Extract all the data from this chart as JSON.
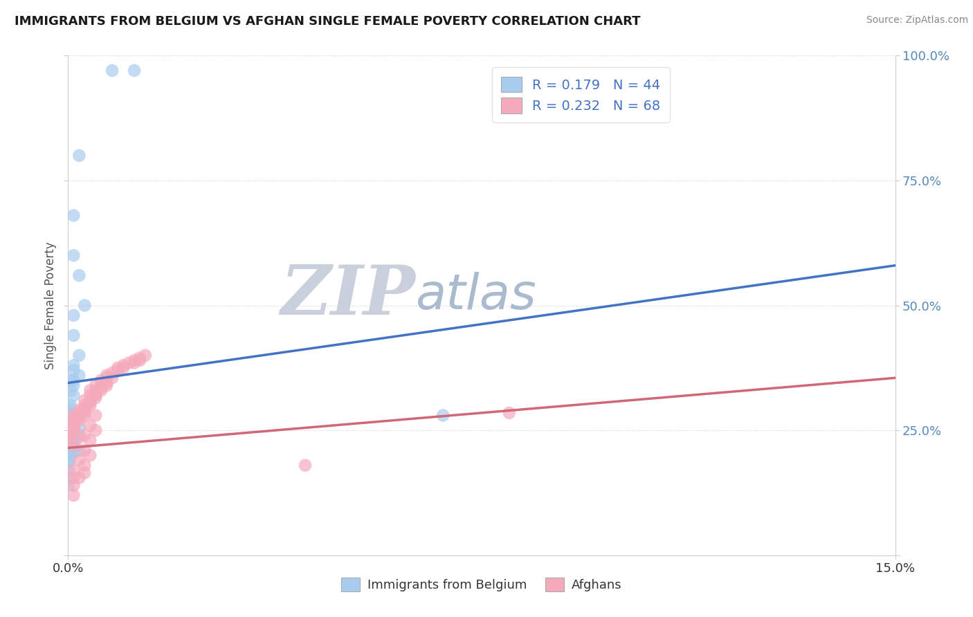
{
  "title": "IMMIGRANTS FROM BELGIUM VS AFGHAN SINGLE FEMALE POVERTY CORRELATION CHART",
  "source": "Source: ZipAtlas.com",
  "ylabel": "Single Female Poverty",
  "xlim": [
    0.0,
    0.15
  ],
  "ylim": [
    0.0,
    1.0
  ],
  "series1_color": "#A8CCEE",
  "series2_color": "#F5AABC",
  "trendline1_color": "#4472C4",
  "trendline2_color": "#D06878",
  "watermark_zip": "ZIP",
  "watermark_atlas": "atlas",
  "watermark_color_zip": "#CACFDC",
  "watermark_color_atlas": "#AABBD0",
  "legend_label1": "Immigrants from Belgium",
  "legend_label2": "Afghans",
  "legend_R1": "R = 0.179",
  "legend_N1": "N = 44",
  "legend_R2": "R = 0.232",
  "legend_N2": "N = 68",
  "blue_x": [
    0.008,
    0.012,
    0.002,
    0.001,
    0.001,
    0.002,
    0.003,
    0.001,
    0.001,
    0.002,
    0.001,
    0.001,
    0.002,
    0.001,
    0.0005,
    0.001,
    0.0005,
    0.001,
    0.0005,
    0.0003,
    0.0003,
    0.0002,
    0.0002,
    0.0001,
    0.001,
    0.002,
    0.001,
    0.001,
    0.002,
    0.001,
    0.0005,
    0.001,
    0.0005,
    0.001,
    0.002,
    0.001,
    0.0003,
    0.0002,
    0.0001,
    0.0001,
    0.0001,
    8e-05,
    5e-05,
    0.068
  ],
  "blue_y": [
    0.97,
    0.97,
    0.8,
    0.68,
    0.6,
    0.56,
    0.5,
    0.48,
    0.44,
    0.4,
    0.38,
    0.37,
    0.36,
    0.35,
    0.35,
    0.34,
    0.33,
    0.32,
    0.3,
    0.295,
    0.285,
    0.28,
    0.27,
    0.265,
    0.26,
    0.255,
    0.25,
    0.245,
    0.24,
    0.235,
    0.23,
    0.225,
    0.22,
    0.215,
    0.21,
    0.205,
    0.2,
    0.195,
    0.19,
    0.185,
    0.17,
    0.155,
    0.14,
    0.28
  ],
  "pink_x": [
    0.0002,
    0.0003,
    0.0005,
    0.001,
    0.001,
    0.001,
    0.001,
    0.001,
    0.001,
    0.002,
    0.002,
    0.002,
    0.002,
    0.003,
    0.003,
    0.003,
    0.003,
    0.003,
    0.003,
    0.004,
    0.004,
    0.004,
    0.004,
    0.004,
    0.005,
    0.005,
    0.005,
    0.005,
    0.005,
    0.006,
    0.006,
    0.006,
    0.006,
    0.007,
    0.007,
    0.007,
    0.007,
    0.008,
    0.008,
    0.009,
    0.009,
    0.01,
    0.01,
    0.011,
    0.012,
    0.012,
    0.013,
    0.013,
    0.014,
    0.001,
    0.002,
    0.003,
    0.004,
    0.005,
    0.002,
    0.003,
    0.004,
    0.005,
    0.003,
    0.004,
    0.043,
    0.08,
    0.001,
    0.001,
    0.002,
    0.003,
    0.001,
    0.001
  ],
  "pink_y": [
    0.23,
    0.24,
    0.245,
    0.25,
    0.255,
    0.26,
    0.265,
    0.27,
    0.28,
    0.27,
    0.275,
    0.285,
    0.29,
    0.28,
    0.285,
    0.29,
    0.295,
    0.3,
    0.31,
    0.3,
    0.305,
    0.31,
    0.32,
    0.33,
    0.315,
    0.32,
    0.325,
    0.33,
    0.34,
    0.33,
    0.335,
    0.34,
    0.35,
    0.34,
    0.345,
    0.355,
    0.36,
    0.355,
    0.365,
    0.37,
    0.375,
    0.375,
    0.38,
    0.385,
    0.385,
    0.39,
    0.39,
    0.395,
    0.4,
    0.22,
    0.235,
    0.24,
    0.26,
    0.28,
    0.19,
    0.21,
    0.23,
    0.25,
    0.18,
    0.2,
    0.18,
    0.285,
    0.17,
    0.155,
    0.155,
    0.165,
    0.14,
    0.12
  ]
}
